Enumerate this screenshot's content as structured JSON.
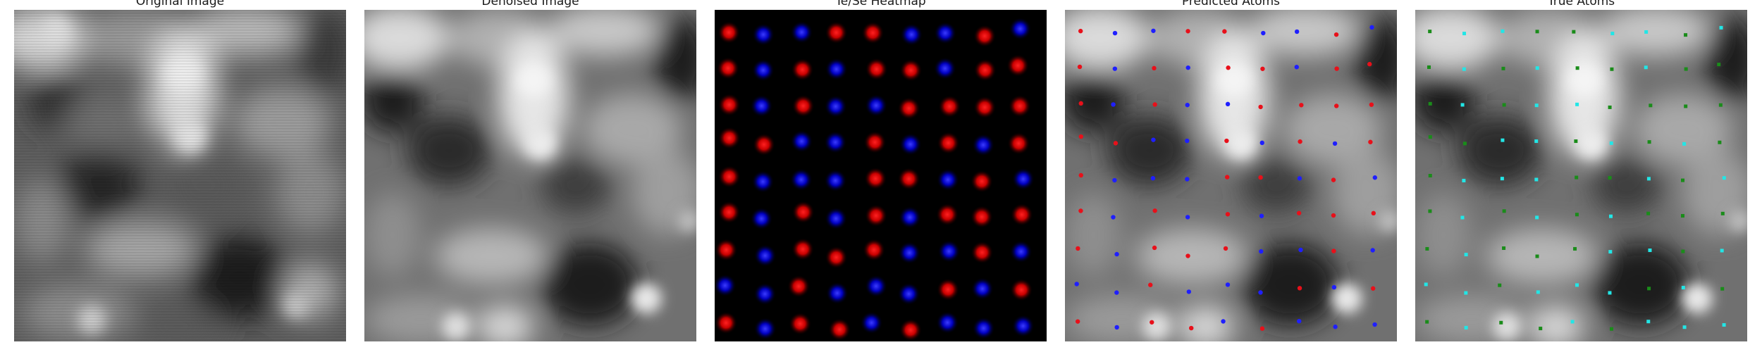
{
  "panels": [
    {
      "title": "Original Image"
    },
    {
      "title": "Denoised Image"
    },
    {
      "title": "Te/Se Heatmap"
    },
    {
      "title": "Predicted Atoms"
    },
    {
      "title": "True Atoms"
    }
  ],
  "colors": {
    "red": "#e8101a",
    "blue": "#1f1fff",
    "green": "#1a8c1a",
    "cyan": "#22e6e6"
  }
}
